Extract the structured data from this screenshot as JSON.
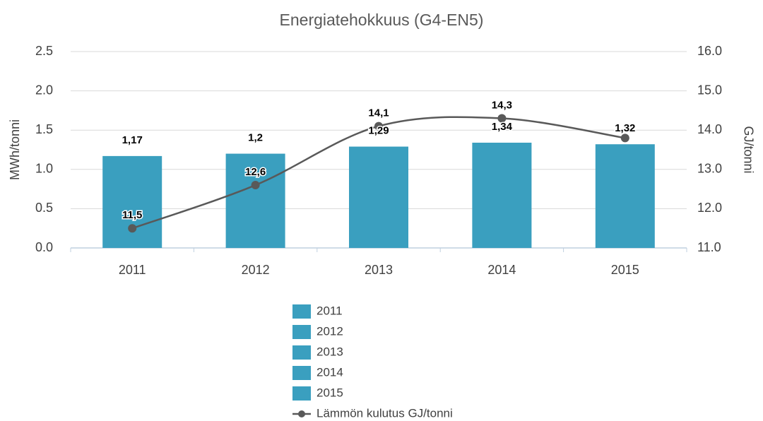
{
  "chart_data": {
    "type": "bar",
    "title": "Energiatehokkuus (G4-EN5)",
    "ylabel": "MWh/tonni",
    "y2label": "GJ/tonni",
    "categories": [
      "2011",
      "2012",
      "2013",
      "2014",
      "2015"
    ],
    "series": [
      {
        "type": "bar",
        "color": "#3a9fbf",
        "values": [
          1.17,
          1.2,
          1.29,
          1.34,
          1.32
        ],
        "value_labels": [
          "1,17",
          "1,2",
          "1,29",
          "1,34",
          "1,32"
        ]
      },
      {
        "type": "line",
        "name": "Lämmön kulutus GJ/tonni",
        "axis": "y2",
        "color": "#595959",
        "values": [
          11.5,
          12.6,
          14.1,
          14.3,
          13.8
        ],
        "value_labels": [
          "11,5",
          "12,6",
          "14,1",
          "14,3",
          null
        ]
      }
    ],
    "ylim": [
      0,
      2.5
    ],
    "yticks": [
      {
        "value": 0,
        "label": "0.0"
      },
      0.5,
      {
        "value": 1,
        "label": "1.0"
      },
      1.5,
      {
        "value": 2,
        "label": "2.0"
      },
      2.5
    ],
    "y2lim": [
      11,
      16
    ],
    "y2ticks": [
      {
        "value": 11,
        "label": "11.0"
      },
      {
        "value": 12,
        "label": "12.0"
      },
      {
        "value": 13,
        "label": "13.0"
      },
      {
        "value": 14,
        "label": "14.0"
      },
      {
        "value": 15,
        "label": "15.0"
      },
      {
        "value": 16,
        "label": "16.0"
      }
    ],
    "grid": true
  }
}
